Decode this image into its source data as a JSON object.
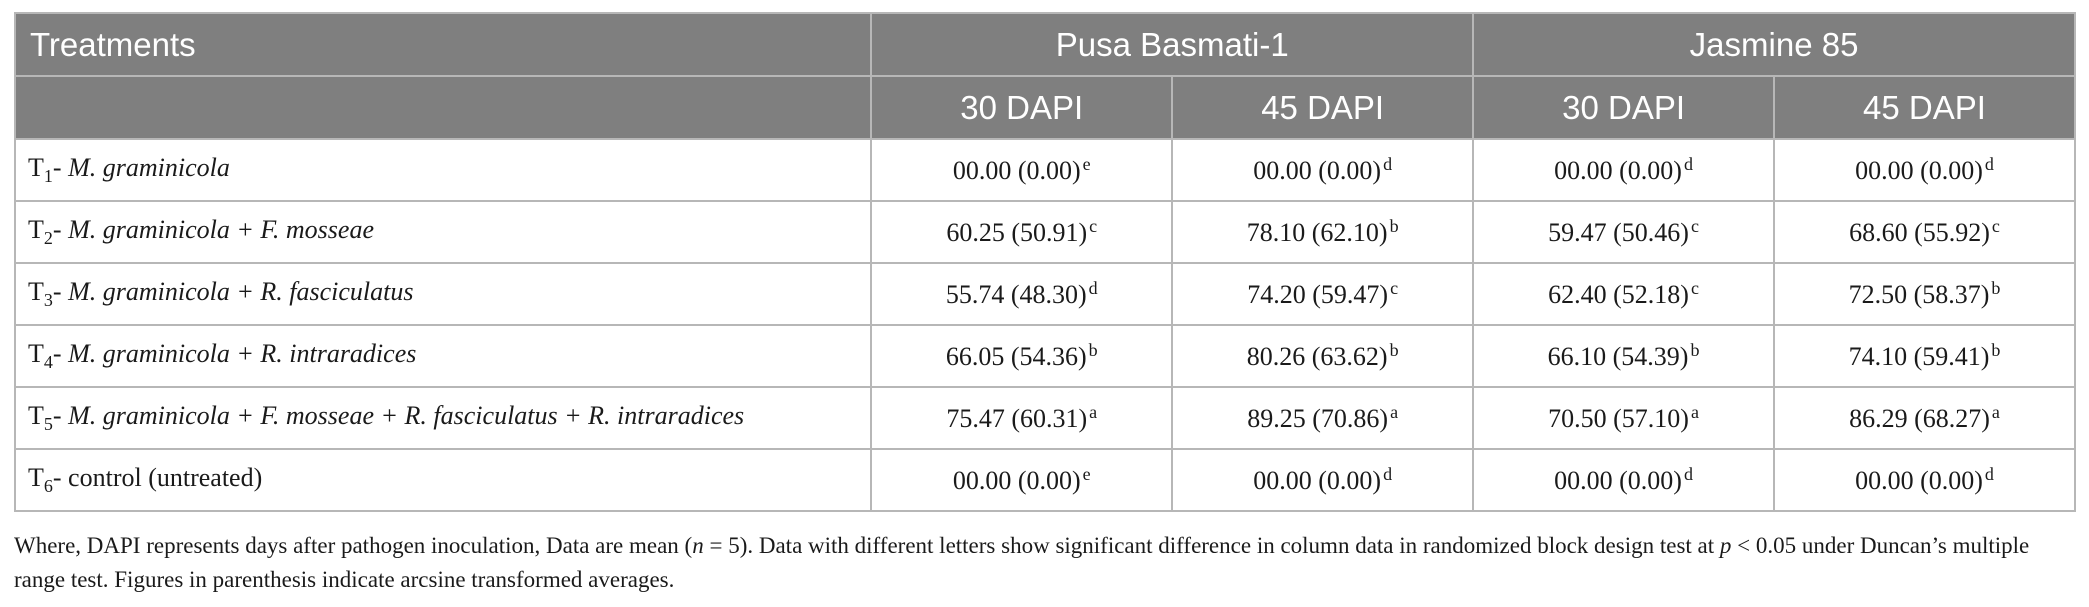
{
  "table": {
    "header": {
      "treatments": "Treatments",
      "variety_1": "Pusa Basmati-1",
      "variety_2": "Jasmine 85",
      "sub_cols": [
        "30 DAPI",
        "45 DAPI",
        "30 DAPI",
        "45 DAPI"
      ]
    },
    "rows": [
      {
        "t": "T",
        "n": "1",
        "desc": "- ",
        "species": "M. graminicola",
        "cells": [
          {
            "v": "00.00 (0.00)",
            "l": "e"
          },
          {
            "v": "00.00 (0.00)",
            "l": "d"
          },
          {
            "v": "00.00 (0.00)",
            "l": "d"
          },
          {
            "v": "00.00 (0.00)",
            "l": "d"
          }
        ]
      },
      {
        "t": "T",
        "n": "2",
        "desc": "- ",
        "species": "M. graminicola + F. mosseae",
        "cells": [
          {
            "v": "60.25 (50.91)",
            "l": "c"
          },
          {
            "v": "78.10 (62.10)",
            "l": "b"
          },
          {
            "v": "59.47 (50.46)",
            "l": "c"
          },
          {
            "v": "68.60 (55.92)",
            "l": "c"
          }
        ]
      },
      {
        "t": "T",
        "n": "3",
        "desc": "- ",
        "species": "M. graminicola + R. fasciculatus",
        "cells": [
          {
            "v": "55.74 (48.30)",
            "l": "d"
          },
          {
            "v": "74.20 (59.47)",
            "l": "c"
          },
          {
            "v": "62.40 (52.18)",
            "l": "c"
          },
          {
            "v": "72.50 (58.37)",
            "l": "b"
          }
        ]
      },
      {
        "t": "T",
        "n": "4",
        "desc": "- ",
        "species": "M. graminicola + R. intraradices",
        "cells": [
          {
            "v": "66.05 (54.36)",
            "l": "b"
          },
          {
            "v": "80.26 (63.62)",
            "l": "b"
          },
          {
            "v": "66.10 (54.39)",
            "l": "b"
          },
          {
            "v": "74.10 (59.41)",
            "l": "b"
          }
        ]
      },
      {
        "t": "T",
        "n": "5",
        "desc": "- ",
        "species": "M. graminicola + F. mosseae + R. fasciculatus + R. intraradices",
        "cells": [
          {
            "v": "75.47 (60.31)",
            "l": "a"
          },
          {
            "v": "89.25 (70.86)",
            "l": "a"
          },
          {
            "v": "70.50 (57.10)",
            "l": "a"
          },
          {
            "v": "86.29 (68.27)",
            "l": "a"
          }
        ]
      },
      {
        "t": "T",
        "n": "6",
        "desc": "- control (untreated)",
        "species": "",
        "cells": [
          {
            "v": "00.00 (0.00)",
            "l": "e"
          },
          {
            "v": "00.00 (0.00)",
            "l": "d"
          },
          {
            "v": "00.00 (0.00)",
            "l": "d"
          },
          {
            "v": "00.00 (0.00)",
            "l": "d"
          }
        ]
      }
    ]
  },
  "footnote": {
    "p1": "Where, DAPI represents days after pathogen inoculation, Data are mean (",
    "n_var": "n",
    "p2": " = 5). Data with different letters show significant difference in column data in randomized block design test at ",
    "p_var": "p",
    "p3": " < 0.05 under Duncan’s multiple range test. Figures in parenthesis indicate arcsine transformed averages."
  },
  "colors": {
    "header_bg": "#7f7f7f",
    "grid": "#b7b7b7"
  }
}
